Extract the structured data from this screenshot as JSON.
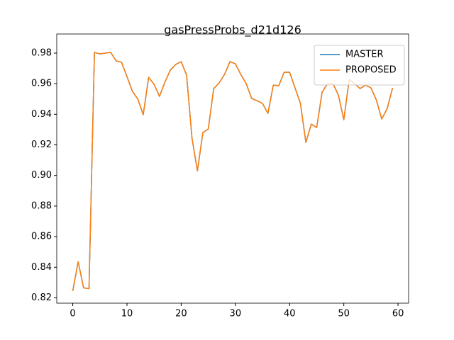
{
  "chart_data": {
    "type": "line",
    "title": "gasPressProbs_d21d126",
    "x": [
      0,
      1,
      2,
      3,
      4,
      5,
      6,
      7,
      8,
      9,
      10,
      11,
      12,
      13,
      14,
      15,
      16,
      17,
      18,
      19,
      20,
      21,
      22,
      23,
      24,
      25,
      26,
      27,
      28,
      29,
      30,
      31,
      32,
      33,
      34,
      35,
      36,
      37,
      38,
      39,
      40,
      41,
      42,
      43,
      44,
      45,
      46,
      47,
      48,
      49,
      50,
      51,
      52,
      53,
      54,
      55,
      56,
      57,
      58,
      59
    ],
    "series": [
      {
        "name": "MASTER",
        "color": "#1f77b4",
        "values": [
          0.8245,
          0.8436,
          0.8265,
          0.826,
          0.9805,
          0.9795,
          0.98,
          0.9805,
          0.9749,
          0.974,
          0.9647,
          0.955,
          0.95,
          0.9397,
          0.9642,
          0.9596,
          0.9517,
          0.961,
          0.9689,
          0.9726,
          0.9744,
          0.9656,
          0.9243,
          0.903,
          0.928,
          0.9304,
          0.9568,
          0.9605,
          0.9661,
          0.9744,
          0.973,
          0.9661,
          0.96,
          0.9503,
          0.9489,
          0.9471,
          0.9406,
          0.9591,
          0.9587,
          0.9675,
          0.9675,
          0.9573,
          0.9471,
          0.9216,
          0.9336,
          0.9313,
          0.9545,
          0.96,
          0.96,
          0.9526,
          0.9364,
          0.9628,
          0.96,
          0.9568,
          0.9591,
          0.9573,
          0.9494,
          0.9369,
          0.9438,
          0.9573
        ]
      },
      {
        "name": "PROPOSED",
        "color": "#ff7f0e",
        "values": [
          0.8245,
          0.8436,
          0.8265,
          0.826,
          0.9805,
          0.9795,
          0.98,
          0.9805,
          0.9749,
          0.974,
          0.9647,
          0.955,
          0.95,
          0.9397,
          0.9642,
          0.9596,
          0.9517,
          0.961,
          0.9689,
          0.9726,
          0.9744,
          0.9656,
          0.9243,
          0.903,
          0.928,
          0.9304,
          0.9568,
          0.9605,
          0.9661,
          0.9744,
          0.973,
          0.9661,
          0.96,
          0.9503,
          0.9489,
          0.9471,
          0.9406,
          0.9591,
          0.9587,
          0.9675,
          0.9675,
          0.9573,
          0.9471,
          0.9216,
          0.9336,
          0.9313,
          0.9545,
          0.96,
          0.96,
          0.9526,
          0.9364,
          0.9628,
          0.96,
          0.9568,
          0.9591,
          0.9573,
          0.9494,
          0.9369,
          0.9438,
          0.9573
        ]
      }
    ],
    "xlim": [
      -2.95,
      61.95
    ],
    "xticks": [
      0,
      10,
      20,
      30,
      40,
      50,
      60
    ],
    "ylim": [
      0.8165,
      0.9925
    ],
    "yticks": [
      0.82,
      0.84,
      0.86,
      0.88,
      {
        "value": 0.9,
        "label": "0.90"
      },
      0.92,
      0.94,
      0.96,
      0.98
    ],
    "legend": "upper right"
  }
}
